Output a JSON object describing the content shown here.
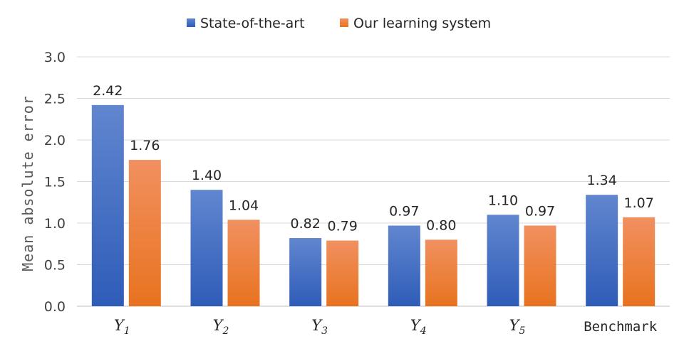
{
  "chart_data": {
    "type": "bar",
    "ylabel": "Mean absolute error",
    "ylim": [
      0,
      3.0
    ],
    "yticks": [
      "0.0",
      "0.5",
      "1.0",
      "1.5",
      "2.0",
      "2.5",
      "3.0"
    ],
    "grid": true,
    "legend_position": "top-center",
    "categories": [
      {
        "main": "Y",
        "sub": "1"
      },
      {
        "main": "Y",
        "sub": "2"
      },
      {
        "main": "Y",
        "sub": "3"
      },
      {
        "main": "Y",
        "sub": "4"
      },
      {
        "main": "Y",
        "sub": "5"
      },
      {
        "main": "Benchmark",
        "sub": ""
      }
    ],
    "series": [
      {
        "name": "State-of-the-art",
        "color": "#4472C4",
        "values": [
          2.42,
          1.4,
          0.82,
          0.97,
          1.1,
          1.34
        ],
        "labels": [
          "2.42",
          "1.40",
          "0.82",
          "0.97",
          "1.10",
          "1.34"
        ]
      },
      {
        "name": "Our learning system",
        "color": "#ED7D31",
        "values": [
          1.76,
          1.04,
          0.79,
          0.8,
          0.97,
          1.07
        ],
        "labels": [
          "1.76",
          "1.04",
          "0.79",
          "0.80",
          "0.97",
          "1.07"
        ]
      }
    ]
  }
}
